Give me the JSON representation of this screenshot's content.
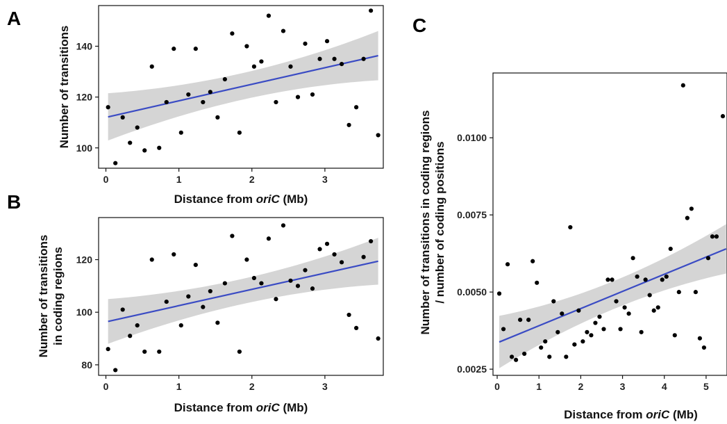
{
  "chart_data": [
    {
      "panel": "A",
      "type": "scatter",
      "xlabel": "Distance from |oriC| (Mb)",
      "ylabel": "Number of transitions",
      "xlim": [
        -0.1,
        3.8
      ],
      "ylim": [
        92,
        156
      ],
      "x_ticks": [
        0,
        1,
        2,
        3
      ],
      "y_ticks": [
        100,
        120,
        140
      ],
      "x": [
        0.03,
        0.13,
        0.23,
        0.33,
        0.43,
        0.53,
        0.63,
        0.73,
        0.83,
        0.93,
        1.03,
        1.13,
        1.23,
        1.33,
        1.43,
        1.53,
        1.63,
        1.73,
        1.83,
        1.93,
        2.03,
        2.13,
        2.23,
        2.33,
        2.43,
        2.53,
        2.63,
        2.73,
        2.83,
        2.93,
        3.03,
        3.13,
        3.23,
        3.33,
        3.43,
        3.53,
        3.63,
        3.73
      ],
      "y": [
        116,
        94,
        112,
        102,
        108,
        99,
        132,
        100,
        118,
        139,
        106,
        121,
        139,
        118,
        122,
        112,
        127,
        145,
        106,
        140,
        132,
        134,
        152,
        118,
        146,
        132,
        120,
        141,
        121,
        135,
        142,
        135,
        133,
        109,
        116,
        135,
        154,
        105
      ],
      "fit": {
        "x0": 0.03,
        "y0": 112.2,
        "x1": 3.73,
        "y1": 136.3,
        "ci0": 9.3,
        "ci1": 9.7
      }
    },
    {
      "panel": "B",
      "type": "scatter",
      "xlabel": "Distance from |oriC| (Mb)",
      "ylabel": "Number of transitions\nin coding regions",
      "xlim": [
        -0.1,
        3.8
      ],
      "ylim": [
        76,
        136
      ],
      "x_ticks": [
        0,
        1,
        2,
        3
      ],
      "y_ticks": [
        80,
        100,
        120
      ],
      "x": [
        0.03,
        0.13,
        0.23,
        0.33,
        0.43,
        0.53,
        0.63,
        0.73,
        0.83,
        0.93,
        1.03,
        1.13,
        1.23,
        1.33,
        1.43,
        1.53,
        1.63,
        1.73,
        1.83,
        1.93,
        2.03,
        2.13,
        2.23,
        2.33,
        2.43,
        2.53,
        2.63,
        2.73,
        2.83,
        2.93,
        3.03,
        3.13,
        3.23,
        3.33,
        3.43,
        3.53,
        3.63,
        3.73
      ],
      "y": [
        86,
        78,
        101,
        91,
        95,
        85,
        120,
        85,
        104,
        122,
        95,
        106,
        118,
        102,
        108,
        96,
        111,
        129,
        85,
        120,
        113,
        111,
        128,
        105,
        133,
        112,
        110,
        116,
        109,
        124,
        126,
        122,
        119,
        99,
        94,
        121,
        127,
        90
      ],
      "fit": {
        "x0": 0.03,
        "y0": 96.5,
        "x1": 3.73,
        "y1": 119.4,
        "ci0": 8.5,
        "ci1": 8.9
      }
    },
    {
      "panel": "C",
      "type": "scatter",
      "xlabel": "Distance from |oriC| (Mb)",
      "ylabel": "Number of transitions in coding regions\n/ number of coding positions",
      "xlim": [
        -0.1,
        5.5
      ],
      "ylim": [
        0.0023,
        0.0121
      ],
      "x_ticks": [
        0,
        1,
        2,
        3,
        4,
        5
      ],
      "y_ticks": [
        0.0025,
        0.005,
        0.0075,
        0.01
      ],
      "x_tick_labels": [
        "0",
        "1",
        "2",
        "3",
        "4",
        "5"
      ],
      "y_tick_labels": [
        "0.0025",
        "0.0050",
        "0.0075",
        "0.0100"
      ],
      "x": [
        0.05,
        0.15,
        0.25,
        0.35,
        0.45,
        0.55,
        0.65,
        0.75,
        0.85,
        0.95,
        1.05,
        1.15,
        1.25,
        1.35,
        1.45,
        1.55,
        1.65,
        1.75,
        1.85,
        1.95,
        2.05,
        2.15,
        2.25,
        2.35,
        2.45,
        2.55,
        2.65,
        2.75,
        2.85,
        2.95,
        3.05,
        3.15,
        3.25,
        3.35,
        3.45,
        3.55,
        3.65,
        3.75,
        3.85,
        3.95,
        4.05,
        4.15,
        4.25,
        4.35,
        4.45,
        4.55,
        4.65,
        4.75,
        4.85,
        4.95,
        5.05,
        5.15,
        5.25,
        5.4
      ],
      "y": [
        0.00495,
        0.0038,
        0.0059,
        0.0029,
        0.0028,
        0.0041,
        0.003,
        0.0041,
        0.006,
        0.0053,
        0.0032,
        0.0034,
        0.0029,
        0.0047,
        0.0037,
        0.0043,
        0.0029,
        0.0071,
        0.0033,
        0.0044,
        0.0034,
        0.0037,
        0.0036,
        0.004,
        0.0042,
        0.0038,
        0.0054,
        0.0054,
        0.0047,
        0.0038,
        0.0045,
        0.0043,
        0.0061,
        0.0055,
        0.0037,
        0.0054,
        0.0049,
        0.0044,
        0.0045,
        0.0054,
        0.0055,
        0.0064,
        0.0036,
        0.005,
        0.0117,
        0.0074,
        0.0077,
        0.005,
        0.0035,
        0.0032,
        0.0061,
        0.0068,
        0.0068,
        0.0107
      ],
      "fit": {
        "x0": 0.05,
        "y0": 0.00338,
        "x1": 5.48,
        "y1": 0.0064,
        "ci0": 0.00085,
        "ci1": 0.0008
      }
    }
  ],
  "panels": {
    "A": {
      "letter": "A"
    },
    "B": {
      "letter": "B"
    },
    "C": {
      "letter": "C"
    }
  },
  "colors": {
    "fit_line": "#3a4bc4",
    "band": "#d3d3d3",
    "point": "#000000"
  }
}
